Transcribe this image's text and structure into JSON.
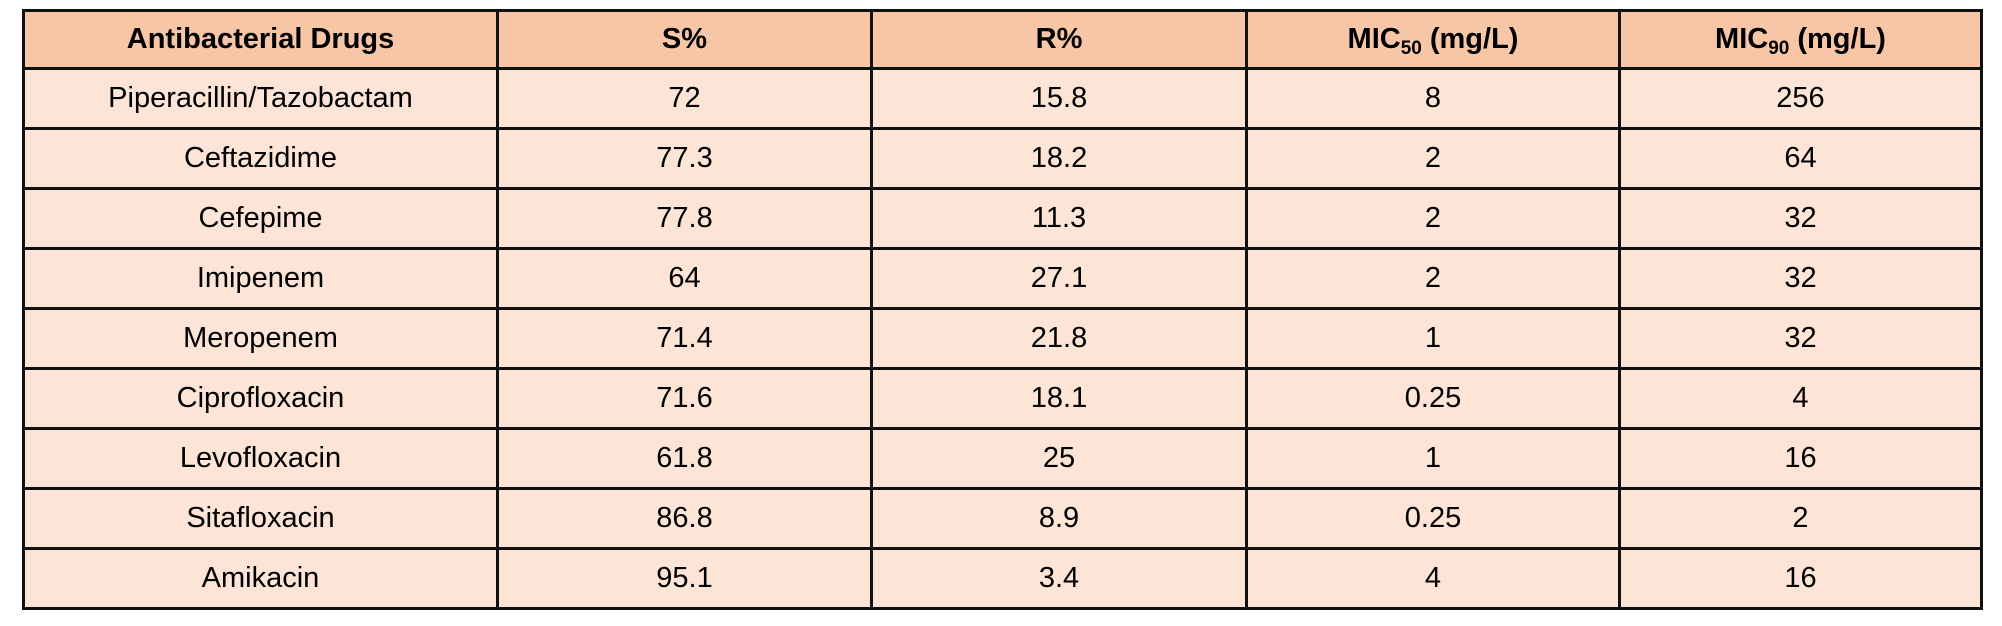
{
  "table": {
    "header": [
      "Antibacterial Drugs",
      "S%",
      "R%",
      [
        "MIC",
        "50",
        "(mg/L)"
      ],
      [
        "MIC",
        "90",
        "(mg/L)"
      ]
    ],
    "rows": [
      [
        "Piperacillin/Tazobactam",
        72,
        15.8,
        8,
        256
      ],
      [
        "Ceftazidime",
        77.3,
        18.2,
        2,
        64
      ],
      [
        "Cefepime",
        77.8,
        11.3,
        2,
        32
      ],
      [
        "Imipenem",
        64,
        27.1,
        2,
        32
      ],
      [
        "Meropenem",
        71.4,
        21.8,
        1,
        32
      ],
      [
        "Ciprofloxacin",
        71.6,
        18.1,
        0.25,
        4
      ],
      [
        "Levofloxacin",
        61.8,
        25,
        1,
        16
      ],
      [
        "Sitafloxacin",
        86.8,
        8.9,
        0.25,
        2
      ],
      [
        "Amikacin",
        95.1,
        3.4,
        4,
        16
      ]
    ]
  }
}
